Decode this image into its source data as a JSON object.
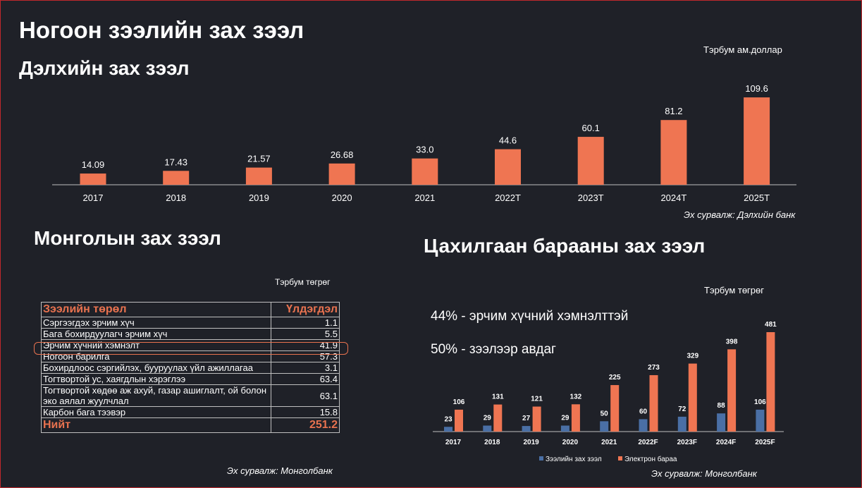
{
  "page": {
    "title": "Ногоон зээлийн зах зээл"
  },
  "world": {
    "title": "Дэлхийн зах зээл",
    "unit": "Тэрбум ам.доллар",
    "source": "Эх сурвалж: Дэлхийн банк"
  },
  "mongolia": {
    "title": "Монголын зах зээл",
    "unit": "Тэрбум төгрөг",
    "source": "Эх сурвалж: Монголбанк",
    "header": {
      "type": "Зээлийн төрөл",
      "balance": "Үлдэгдэл"
    },
    "rows": [
      {
        "label": "Сэргээгдэх эрчим хүч",
        "value": "1.1"
      },
      {
        "label": "Бага бохирдуулагч эрчим хүч",
        "value": "5.5"
      },
      {
        "label": "Эрчим хүчний хэмнэлт",
        "value": "41.9"
      },
      {
        "label": "Ногоон барилга",
        "value": "57.3"
      },
      {
        "label": "Бохирдлоос сэргийлэх, бууруулах үйл ажиллагаа",
        "value": "3.1"
      },
      {
        "label": "Тогтвортой ус, хаягдлын хэрэглээ",
        "value": "63.4"
      },
      {
        "label": "Тогтвортой хөдөө аж ахуй, газар ашиглалт, ой болон эко аялал жуулчлал",
        "value": "63.1"
      },
      {
        "label": "Карбон бага тээвэр",
        "value": "15.8"
      }
    ],
    "total": {
      "label": "Нийт",
      "value": "251.2"
    }
  },
  "electronics": {
    "title": "Цахилгаан барааны зах зээл",
    "unit": "Тэрбум төгрөг",
    "note1": "44% - эрчим хүчний хэмнэлттэй",
    "note2": "50% - зээлээр авдаг",
    "source": "Эх сурвалж: Монголбанк"
  },
  "chart_data": [
    {
      "type": "bar",
      "title": "Дэлхийн зах зээл",
      "categories": [
        "2017",
        "2018",
        "2019",
        "2020",
        "2021",
        "2022T",
        "2023T",
        "2024T",
        "2025T"
      ],
      "values": [
        14.09,
        17.43,
        21.57,
        26.68,
        33.0,
        44.6,
        60.1,
        81.2,
        109.6
      ],
      "labels": [
        "14.09",
        "17.43",
        "21.57",
        "26.68",
        "33.0",
        "44.6",
        "60.1",
        "81.2",
        "109.6"
      ],
      "ylim": [
        0,
        115
      ],
      "color": "#ef7552",
      "grid": false
    },
    {
      "type": "bar",
      "title": "Цахилгаан барааны зах зээл",
      "categories": [
        "2017",
        "2018",
        "2019",
        "2020",
        "2021",
        "2022F",
        "2023F",
        "2024F",
        "2025F"
      ],
      "series": [
        {
          "name": "Зээлийн зах зээл",
          "values": [
            23,
            29,
            27,
            29,
            50,
            60,
            72,
            88,
            106
          ],
          "color": "#4a6fa5"
        },
        {
          "name": "Электрон бараа",
          "values": [
            106,
            131,
            121,
            132,
            225,
            273,
            329,
            398,
            481
          ],
          "color": "#ef7552"
        }
      ],
      "ylim": [
        0,
        500
      ],
      "legend": "bottom",
      "grid": false
    }
  ]
}
